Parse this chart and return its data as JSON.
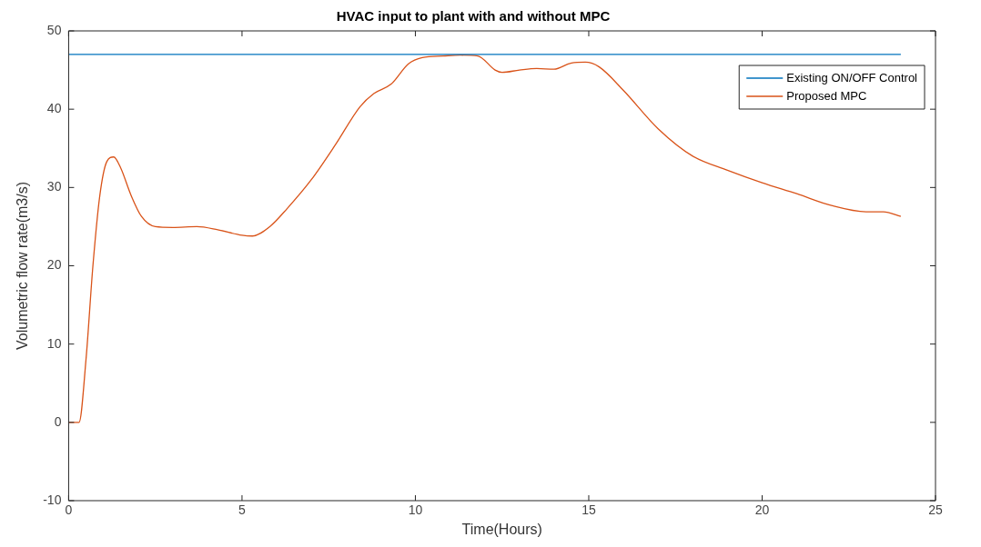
{
  "chart_data": {
    "type": "line",
    "title": "HVAC input to plant with and without MPC",
    "xlabel": "Time(Hours)",
    "ylabel": "Volumetric flow rate(m3/s)",
    "xlim": [
      0,
      25
    ],
    "xticks": [
      0,
      5,
      10,
      15,
      20,
      25
    ],
    "ylim": [
      -10,
      50
    ],
    "yticks": [
      -10,
      0,
      10,
      20,
      30,
      40,
      50
    ],
    "grid": false,
    "legend": "top right",
    "marker": "none",
    "line_style": "solid",
    "series": [
      {
        "name": "Existing ON/OFF Control",
        "color": "#0072bd",
        "x": [
          0,
          24
        ],
        "values": [
          47,
          47
        ]
      },
      {
        "name": "Proposed MPC",
        "color": "#d95319",
        "x": [
          0,
          0.3,
          0.5,
          0.7,
          0.9,
          1.1,
          1.3,
          1.5,
          1.8,
          2.1,
          2.5,
          3,
          3.7,
          4.3,
          5,
          5.3,
          5.8,
          6.3,
          7,
          7.7,
          8.4,
          8.8,
          9.3,
          9.8,
          10.2,
          10.8,
          11.3,
          11.8,
          12.3,
          12.5,
          13,
          13.5,
          14,
          14.5,
          14.9,
          15.3,
          16,
          17,
          18,
          19,
          20,
          21,
          22,
          23,
          23.5,
          24
        ],
        "values": [
          0,
          0,
          8,
          20,
          29,
          33.3,
          33.9,
          32.5,
          29,
          26.3,
          25,
          24.9,
          25,
          24.6,
          23.9,
          23.8,
          25,
          27.3,
          31,
          35.5,
          40.3,
          42,
          43.2,
          45.8,
          46.6,
          46.8,
          46.9,
          46.8,
          45,
          44.7,
          45,
          45.2,
          45.1,
          45.9,
          46,
          45.4,
          42.4,
          37.5,
          34,
          32.2,
          30.6,
          29.2,
          27.7,
          26.9,
          26.9,
          26.3
        ]
      }
    ]
  }
}
